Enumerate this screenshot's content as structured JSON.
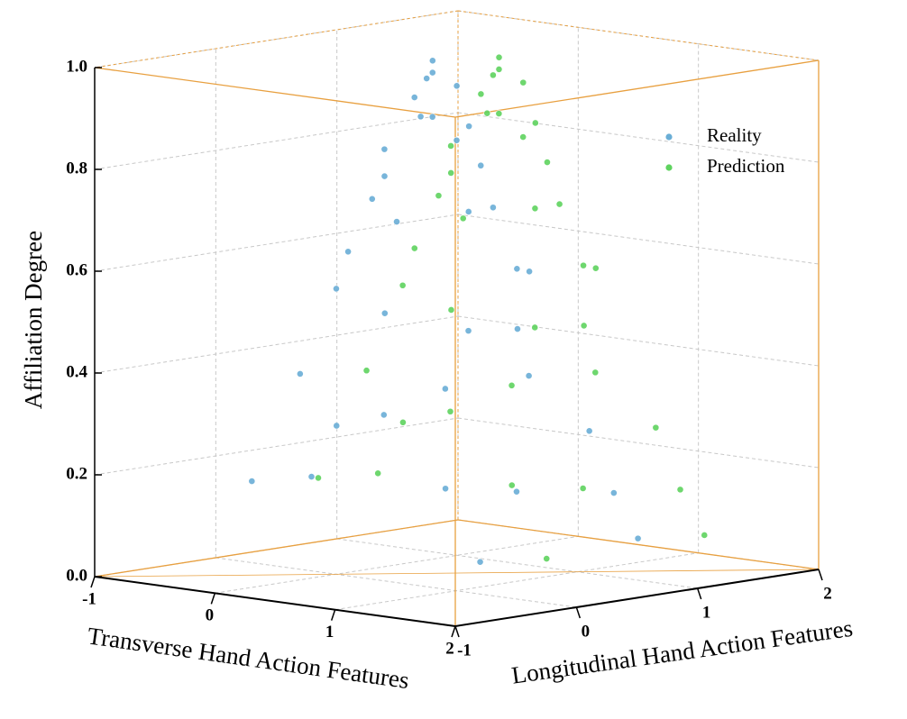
{
  "chart_data": {
    "type": "scatter3d",
    "xlabel": "Transverse Hand Action Features",
    "ylabel": "Longitudinal Hand Action Features",
    "zlabel": "Affiliation Degree",
    "xlim": [
      -1,
      2
    ],
    "xticks": [
      -1,
      0,
      1,
      2
    ],
    "ylim": [
      -1,
      2
    ],
    "yticks": [
      -1,
      0,
      1,
      2
    ],
    "zlim": [
      0,
      1
    ],
    "zticks": [
      {
        "value": 0,
        "label": "0.0"
      },
      0.2,
      0.4,
      0.6,
      0.8,
      {
        "value": 1,
        "label": "1.0"
      }
    ],
    "grid": true,
    "legend": "upper right",
    "series": [
      {
        "name": "Reality",
        "color": "#6aaed6",
        "x": [
          0.3,
          0.35,
          0.2,
          0.4,
          0.25,
          0.45,
          0.1,
          0.3,
          0.5,
          0.0,
          0.6,
          -0.1,
          0.2,
          0.7,
          0.4,
          -0.2,
          0.0,
          0.8,
          0.5,
          -0.3,
          0.9,
          -0.4,
          0.2,
          1.0,
          -0.5,
          0.6,
          -0.3,
          1.1,
          -0.6,
          0.3,
          1.2,
          -0.7,
          0.8,
          -0.5,
          1.3,
          0.9
        ],
        "y": [
          0.5,
          0.45,
          0.55,
          0.6,
          0.4,
          0.35,
          0.6,
          0.8,
          0.5,
          0.4,
          0.6,
          0.5,
          0.1,
          0.4,
          0.9,
          0.7,
          0.1,
          0.7,
          1.1,
          0.3,
          0.2,
          0.8,
          1.3,
          0.6,
          0.2,
          -0.2,
          1.2,
          1.0,
          0.6,
          -0.5,
          0.3,
          0.0,
          1.5,
          1.4,
          -0.1,
          1.6
        ],
        "z": [
          1.0,
          0.98,
          0.96,
          0.95,
          0.93,
          0.9,
          0.88,
          0.86,
          0.85,
          0.82,
          0.8,
          0.76,
          0.74,
          0.72,
          0.7,
          0.66,
          0.63,
          0.6,
          0.57,
          0.54,
          0.5,
          0.47,
          0.44,
          0.4,
          0.37,
          0.34,
          0.31,
          0.28,
          0.25,
          0.22,
          0.19,
          0.16,
          0.13,
          0.1,
          0.07,
          0.04
        ]
      },
      {
        "name": "Prediction",
        "color": "#5fd35f",
        "x": [
          0.5,
          0.55,
          0.4,
          0.6,
          0.45,
          0.65,
          0.3,
          0.5,
          0.7,
          0.2,
          0.8,
          0.1,
          0.4,
          0.9,
          0.6,
          0.0,
          0.2,
          1.0,
          0.7,
          -0.1,
          1.1,
          -0.2,
          0.4,
          1.2,
          -0.3,
          0.8,
          -0.1,
          1.3,
          -0.4,
          0.5,
          1.4,
          -0.5,
          1.0,
          -0.3,
          1.5,
          1.1
        ],
        "y": [
          0.85,
          0.8,
          0.9,
          0.95,
          0.75,
          0.7,
          0.95,
          1.15,
          0.85,
          0.75,
          0.95,
          0.85,
          0.45,
          0.75,
          1.25,
          1.05,
          0.45,
          1.05,
          1.45,
          0.65,
          0.55,
          1.15,
          1.65,
          0.95,
          0.55,
          0.15,
          1.55,
          1.35,
          0.95,
          -0.15,
          0.65,
          0.35,
          1.85,
          1.75,
          0.25,
          1.95
        ],
        "z": [
          1.0,
          0.98,
          0.96,
          0.95,
          0.93,
          0.9,
          0.88,
          0.86,
          0.85,
          0.82,
          0.8,
          0.76,
          0.74,
          0.72,
          0.7,
          0.66,
          0.63,
          0.6,
          0.57,
          0.54,
          0.5,
          0.47,
          0.44,
          0.4,
          0.37,
          0.34,
          0.31,
          0.28,
          0.25,
          0.22,
          0.19,
          0.16,
          0.13,
          0.1,
          0.07,
          0.04
        ]
      }
    ]
  }
}
